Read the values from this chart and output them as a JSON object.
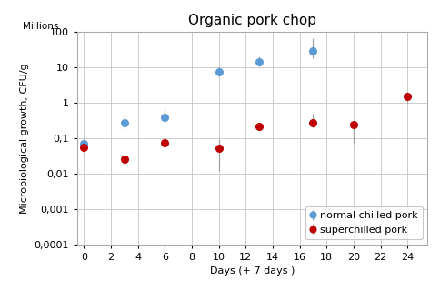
{
  "title": "Organic pork chop",
  "xlabel": "Days (+ 7 days )",
  "ylabel": "Microbiological growth, CFU/g",
  "ylabel2": "Millions",
  "blue_label": "normal chilled pork",
  "red_label": "superchilled pork",
  "blue_x": [
    0,
    3,
    6,
    10,
    13,
    17
  ],
  "blue_y": [
    0.07,
    0.28,
    0.4,
    7.5,
    14.0,
    30.0
  ],
  "blue_yerr_lo": [
    0.025,
    0.1,
    0.1,
    2.0,
    3.5,
    12.0
  ],
  "blue_yerr_hi": [
    0.025,
    0.15,
    0.28,
    2.5,
    7.0,
    35.0
  ],
  "red_x": [
    0,
    3,
    6,
    10,
    13,
    17,
    20,
    24
  ],
  "red_y": [
    0.055,
    0.025,
    0.075,
    0.052,
    0.22,
    0.28,
    0.25,
    1.5
  ],
  "red_yerr_lo": [
    0.015,
    0.007,
    0.02,
    0.04,
    0.04,
    0.08,
    0.18,
    0.5
  ],
  "red_yerr_hi": [
    0.015,
    0.01,
    0.03,
    0.04,
    0.05,
    0.22,
    0.06,
    0.5
  ],
  "blue_color": "#5B9BD5",
  "red_color": "#C00000",
  "error_color": "#A0A0A0",
  "ylim": [
    0.0001,
    100
  ],
  "xlim": [
    -0.5,
    25.5
  ],
  "xticks": [
    0,
    2,
    4,
    6,
    8,
    10,
    12,
    14,
    16,
    18,
    20,
    22,
    24
  ],
  "background_color": "#ffffff",
  "grid_color": "#cccccc",
  "title_fontsize": 11,
  "axis_fontsize": 8,
  "tick_fontsize": 8,
  "legend_fontsize": 8
}
